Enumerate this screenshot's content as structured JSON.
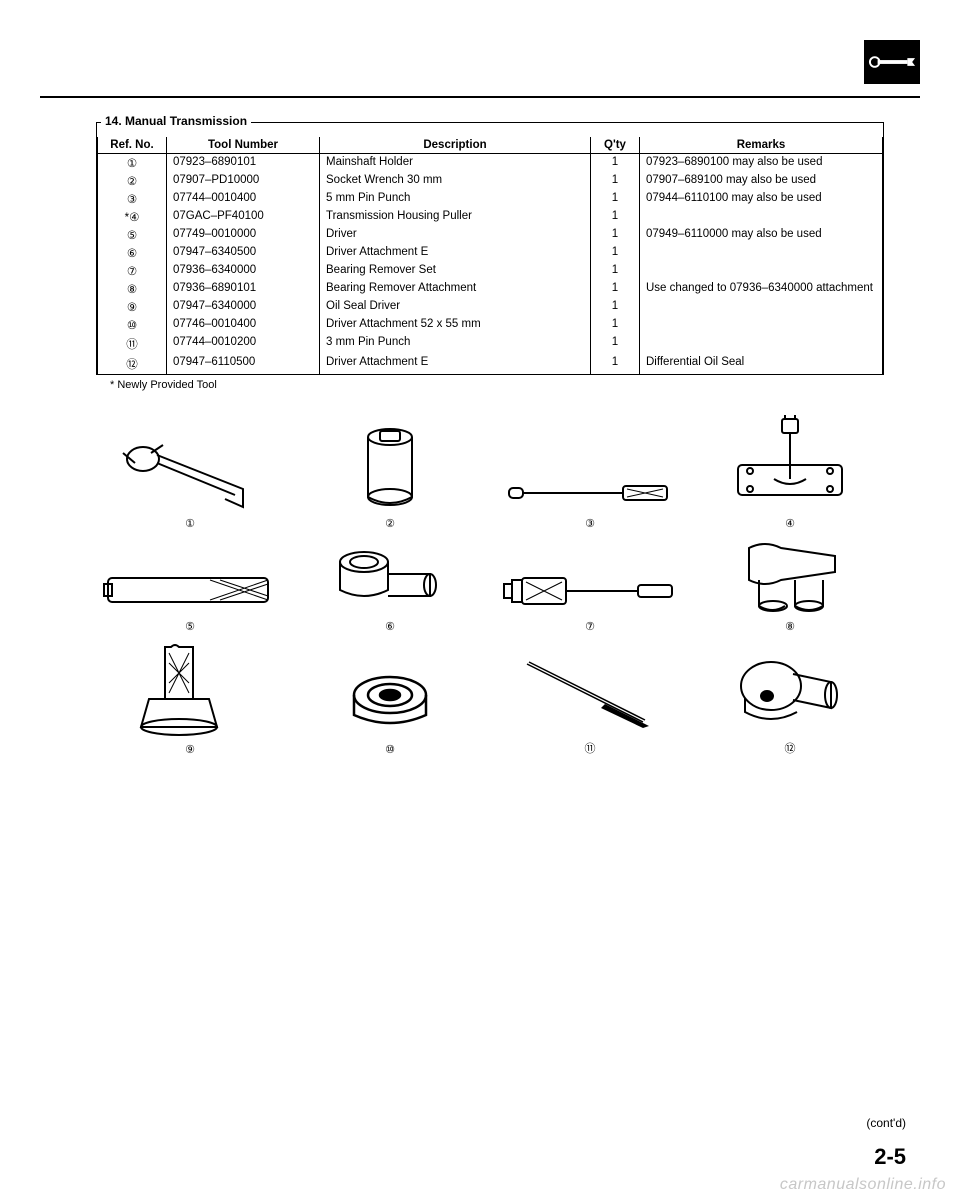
{
  "header": {
    "icon_name": "wrench-icon"
  },
  "section": {
    "legend": "14. Manual Transmission",
    "columns": [
      "Ref. No.",
      "Tool Number",
      "Description",
      "Q'ty",
      "Remarks"
    ],
    "rows": [
      {
        "ref": "①",
        "prefix": "",
        "tool": "07923–6890101",
        "desc": "Mainshaft Holder",
        "qty": "1",
        "rem": "07923–6890100 may also be used"
      },
      {
        "ref": "②",
        "prefix": "",
        "tool": "07907–PD10000",
        "desc": "Socket Wrench 30 mm",
        "qty": "1",
        "rem": "07907–689100 may also be used"
      },
      {
        "ref": "③",
        "prefix": "",
        "tool": "07744–0010400",
        "desc": "5 mm Pin Punch",
        "qty": "1",
        "rem": "07944–6110100 may also be used"
      },
      {
        "ref": "④",
        "prefix": "*",
        "tool": "07GAC–PF40100",
        "desc": "Transmission Housing Puller",
        "qty": "1",
        "rem": ""
      },
      {
        "ref": "⑤",
        "prefix": "",
        "tool": "07749–0010000",
        "desc": "Driver",
        "qty": "1",
        "rem": "07949–6110000 may also be used"
      },
      {
        "ref": "⑥",
        "prefix": "",
        "tool": "07947–6340500",
        "desc": "Driver Attachment E",
        "qty": "1",
        "rem": ""
      },
      {
        "ref": "⑦",
        "prefix": "",
        "tool": "07936–6340000",
        "desc": "Bearing Remover Set",
        "qty": "1",
        "rem": ""
      },
      {
        "ref": "⑧",
        "prefix": "",
        "tool": "07936–6890101",
        "desc": "Bearing Remover Attachment",
        "qty": "1",
        "rem": "Use changed to 07936–6340000 attachment"
      },
      {
        "ref": "⑨",
        "prefix": "",
        "tool": "07947–6340000",
        "desc": "Oil Seal Driver",
        "qty": "1",
        "rem": ""
      },
      {
        "ref": "⑩",
        "prefix": "",
        "tool": "07746–0010400",
        "desc": "Driver Attachment 52 x 55 mm",
        "qty": "1",
        "rem": ""
      },
      {
        "ref": "⑪",
        "prefix": "",
        "tool": "07744–0010200",
        "desc": "3 mm Pin Punch",
        "qty": "1",
        "rem": ""
      },
      {
        "ref": "⑫",
        "prefix": "",
        "tool": "07947–6110500",
        "desc": "Driver Attachment E",
        "qty": "1",
        "rem": "Differential Oil Seal"
      }
    ]
  },
  "footnote": "* Newly Provided Tool",
  "illustration_labels": [
    "①",
    "②",
    "③",
    "④",
    "⑤",
    "⑥",
    "⑦",
    "⑧",
    "⑨",
    "⑩",
    "⑪",
    "⑫"
  ],
  "contd": "(cont'd)",
  "pagenum": "2-5",
  "watermark": "carmanualsonline.info"
}
